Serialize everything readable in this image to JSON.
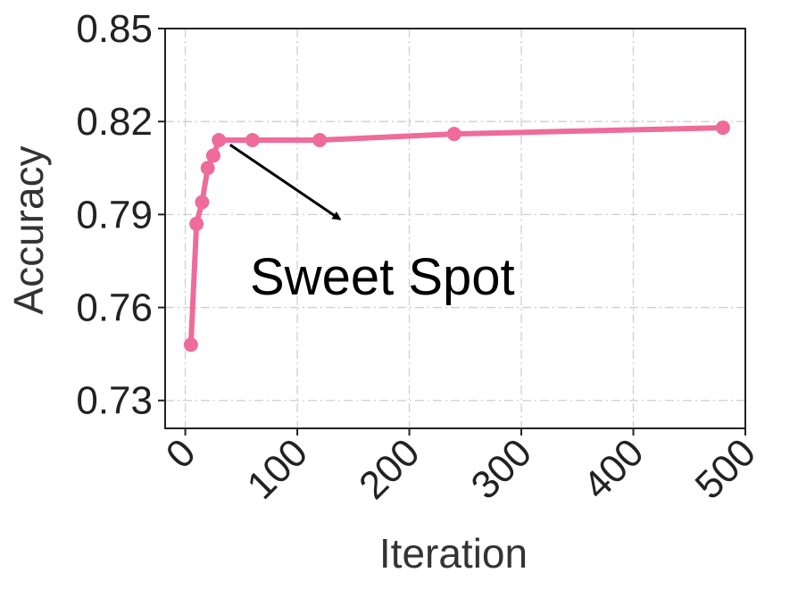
{
  "chart_data": {
    "type": "line",
    "xlabel": "Iteration",
    "ylabel": "Accuracy",
    "xlim": [
      -18,
      500
    ],
    "ylim": [
      0.721,
      0.85
    ],
    "x_ticks": [
      0,
      100,
      200,
      300,
      400,
      500
    ],
    "y_ticks": [
      0.73,
      0.76,
      0.79,
      0.82,
      0.85
    ],
    "x_tick_labels": [
      "0",
      "100",
      "200",
      "300",
      "400",
      "500"
    ],
    "y_tick_labels": [
      "0.73",
      "0.76",
      "0.79",
      "0.82",
      "0.85"
    ],
    "grid": true,
    "series": [
      {
        "color": "#EE6B9A",
        "x": [
          5,
          10,
          15,
          20,
          25,
          30,
          60,
          120,
          240,
          480
        ],
        "y": [
          0.748,
          0.787,
          0.794,
          0.805,
          0.809,
          0.814,
          0.814,
          0.814,
          0.816,
          0.818
        ]
      }
    ],
    "annotations": [
      {
        "text": "Sweet Spot",
        "arrow_from": [
          40,
          0.8125
        ],
        "arrow_to": [
          138,
          0.7885
        ]
      }
    ]
  }
}
